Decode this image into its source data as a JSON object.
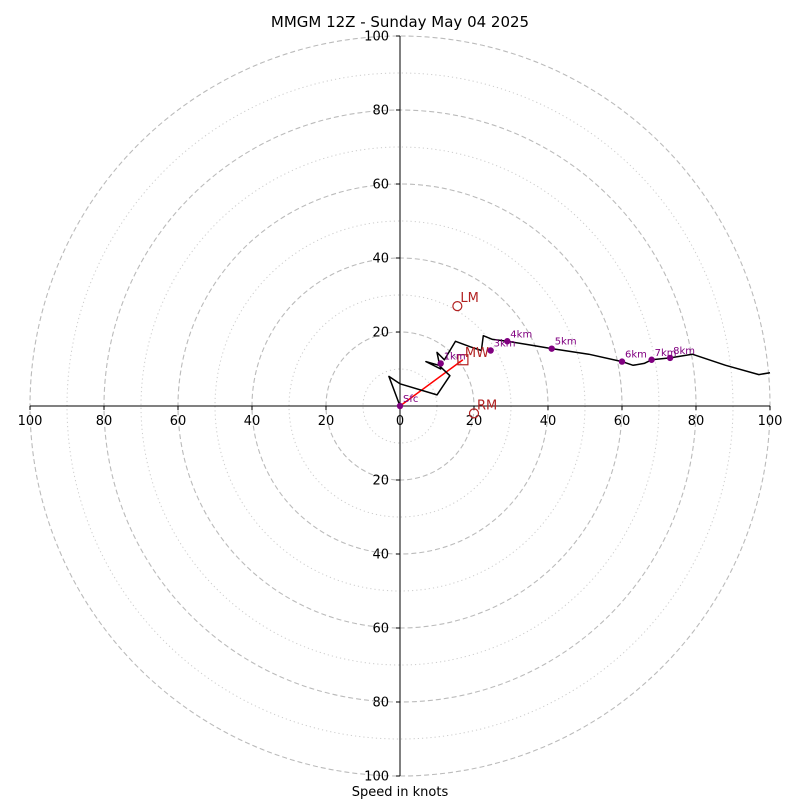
{
  "chart_data": {
    "type": "scatter",
    "subtype": "hodograph",
    "title": "MMGM 12Z - Sunday May 04 2025",
    "xlabel": "Speed in knots",
    "axis_range": [
      -100,
      100
    ],
    "ring_dashed": [
      20,
      40,
      60,
      80,
      100
    ],
    "ring_dotted": [
      10,
      30,
      50,
      70,
      90
    ],
    "x_tick_labels": [
      "100",
      "80",
      "60",
      "40",
      "20",
      "0",
      "20",
      "40",
      "60",
      "80",
      "100"
    ],
    "x_tick_values": [
      -100,
      -80,
      -60,
      -40,
      -20,
      0,
      20,
      40,
      60,
      80,
      100
    ],
    "y_tick_labels_upper": [
      "20",
      "40",
      "60",
      "80",
      "100"
    ],
    "y_tick_values_upper": [
      20,
      40,
      60,
      80,
      100
    ],
    "y_tick_labels_lower": [
      "20",
      "40",
      "60",
      "80",
      "100"
    ],
    "y_tick_values_lower": [
      -20,
      -40,
      -60,
      -80,
      -100
    ],
    "grid": true,
    "colors": {
      "trace": "#000000",
      "height_marker": "#800080",
      "storm_motion": "#b22222",
      "shear_vector": "#ff0000",
      "grid": "#bbbbbb",
      "axes": "#000000"
    },
    "wind_trace": [
      [
        0,
        0
      ],
      [
        -3,
        8
      ],
      [
        0,
        6
      ],
      [
        10,
        3
      ],
      [
        13.5,
        8.2
      ],
      [
        10.5,
        11
      ],
      [
        7,
        12
      ],
      [
        11,
        10
      ],
      [
        10.5,
        12
      ],
      [
        10,
        14.5
      ],
      [
        12,
        12.5
      ],
      [
        15,
        17.5
      ],
      [
        19,
        16
      ],
      [
        22,
        15
      ],
      [
        22.5,
        19
      ],
      [
        25,
        18
      ],
      [
        29,
        17.5
      ],
      [
        35,
        16.5
      ],
      [
        41,
        15.5
      ],
      [
        51,
        14
      ],
      [
        60,
        12
      ],
      [
        63,
        11
      ],
      [
        66,
        11.5
      ],
      [
        68,
        12.5
      ],
      [
        73,
        13
      ],
      [
        79,
        14
      ],
      [
        88,
        11
      ],
      [
        97,
        8.5
      ],
      [
        100,
        9
      ]
    ],
    "height_markers": [
      {
        "label": "Sfc",
        "u": 0,
        "v": 0
      },
      {
        "label": "1km",
        "u": 11,
        "v": 11.5
      },
      {
        "label": "3km",
        "u": 24.5,
        "v": 15
      },
      {
        "label": "4km",
        "u": 29,
        "v": 17.5
      },
      {
        "label": "5km",
        "u": 41,
        "v": 15.5
      },
      {
        "label": "6km",
        "u": 60,
        "v": 12
      },
      {
        "label": "7km",
        "u": 68,
        "v": 12.5
      },
      {
        "label": "8km",
        "u": 73,
        "v": 13
      }
    ],
    "storm_motion": {
      "LM": {
        "label": "LM",
        "u": 15.5,
        "v": 27
      },
      "RM": {
        "label": "RM",
        "u": 20,
        "v": -2
      },
      "MW": {
        "label": "MW",
        "u": 17,
        "v": 12.5
      }
    },
    "shear_vector": {
      "from": [
        0,
        0
      ],
      "to": [
        17,
        12.5
      ]
    }
  }
}
